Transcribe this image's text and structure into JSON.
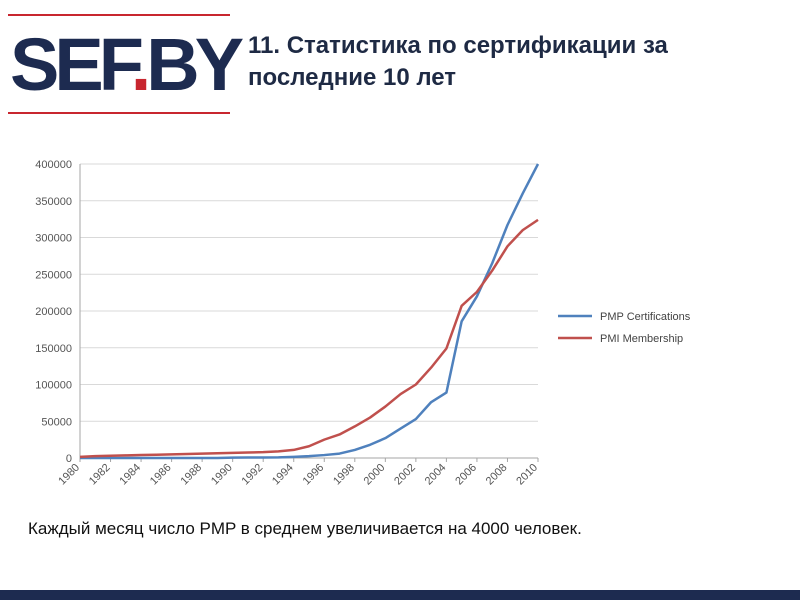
{
  "logo": {
    "part1": "SEF",
    "dot": ".",
    "part2": "BY",
    "brand_color": "#1d2b50",
    "dot_color": "#c8262f",
    "line_color": "#c8262f"
  },
  "title": "11. Статистика по сертификации за последние 10 лет",
  "caption": "Каждый месяц число PMP в среднем увеличивается на 4000 человек.",
  "chart_data": {
    "type": "line",
    "x": [
      1980,
      1981,
      1982,
      1983,
      1984,
      1985,
      1986,
      1987,
      1988,
      1989,
      1990,
      1991,
      1992,
      1993,
      1994,
      1995,
      1996,
      1997,
      1998,
      1999,
      2000,
      2001,
      2002,
      2003,
      2004,
      2005,
      2006,
      2007,
      2008,
      2009,
      2010
    ],
    "x_tick_labels": [
      "1980",
      "1982",
      "1984",
      "1986",
      "1988",
      "1990",
      "1992",
      "1994",
      "1996",
      "1998",
      "2000",
      "2002",
      "2004",
      "2006",
      "2008",
      "2010"
    ],
    "y_tick_labels": [
      "0",
      "50000",
      "100000",
      "150000",
      "200000",
      "250000",
      "300000",
      "350000",
      "400000"
    ],
    "ylim": [
      0,
      400000
    ],
    "grid": true,
    "legend_position": "right",
    "series": [
      {
        "name": "PMP Certifications",
        "color": "#4f81bd",
        "values": [
          0,
          0,
          0,
          0,
          0,
          0,
          0,
          0,
          0,
          0,
          500,
          600,
          700,
          800,
          1500,
          2500,
          4000,
          6000,
          11000,
          18000,
          27000,
          40000,
          53000,
          76000,
          89000,
          186000,
          220000,
          265000,
          317000,
          360000,
          400000
        ]
      },
      {
        "name": "PMI Membership",
        "color": "#c0504d",
        "values": [
          1500,
          2500,
          3000,
          3500,
          4000,
          4500,
          5000,
          5500,
          6000,
          6500,
          7000,
          7500,
          8000,
          9000,
          11000,
          16000,
          25000,
          32000,
          43000,
          55000,
          70000,
          87000,
          100000,
          123000,
          149000,
          207000,
          226000,
          255000,
          288000,
          310000,
          324000
        ]
      }
    ]
  }
}
